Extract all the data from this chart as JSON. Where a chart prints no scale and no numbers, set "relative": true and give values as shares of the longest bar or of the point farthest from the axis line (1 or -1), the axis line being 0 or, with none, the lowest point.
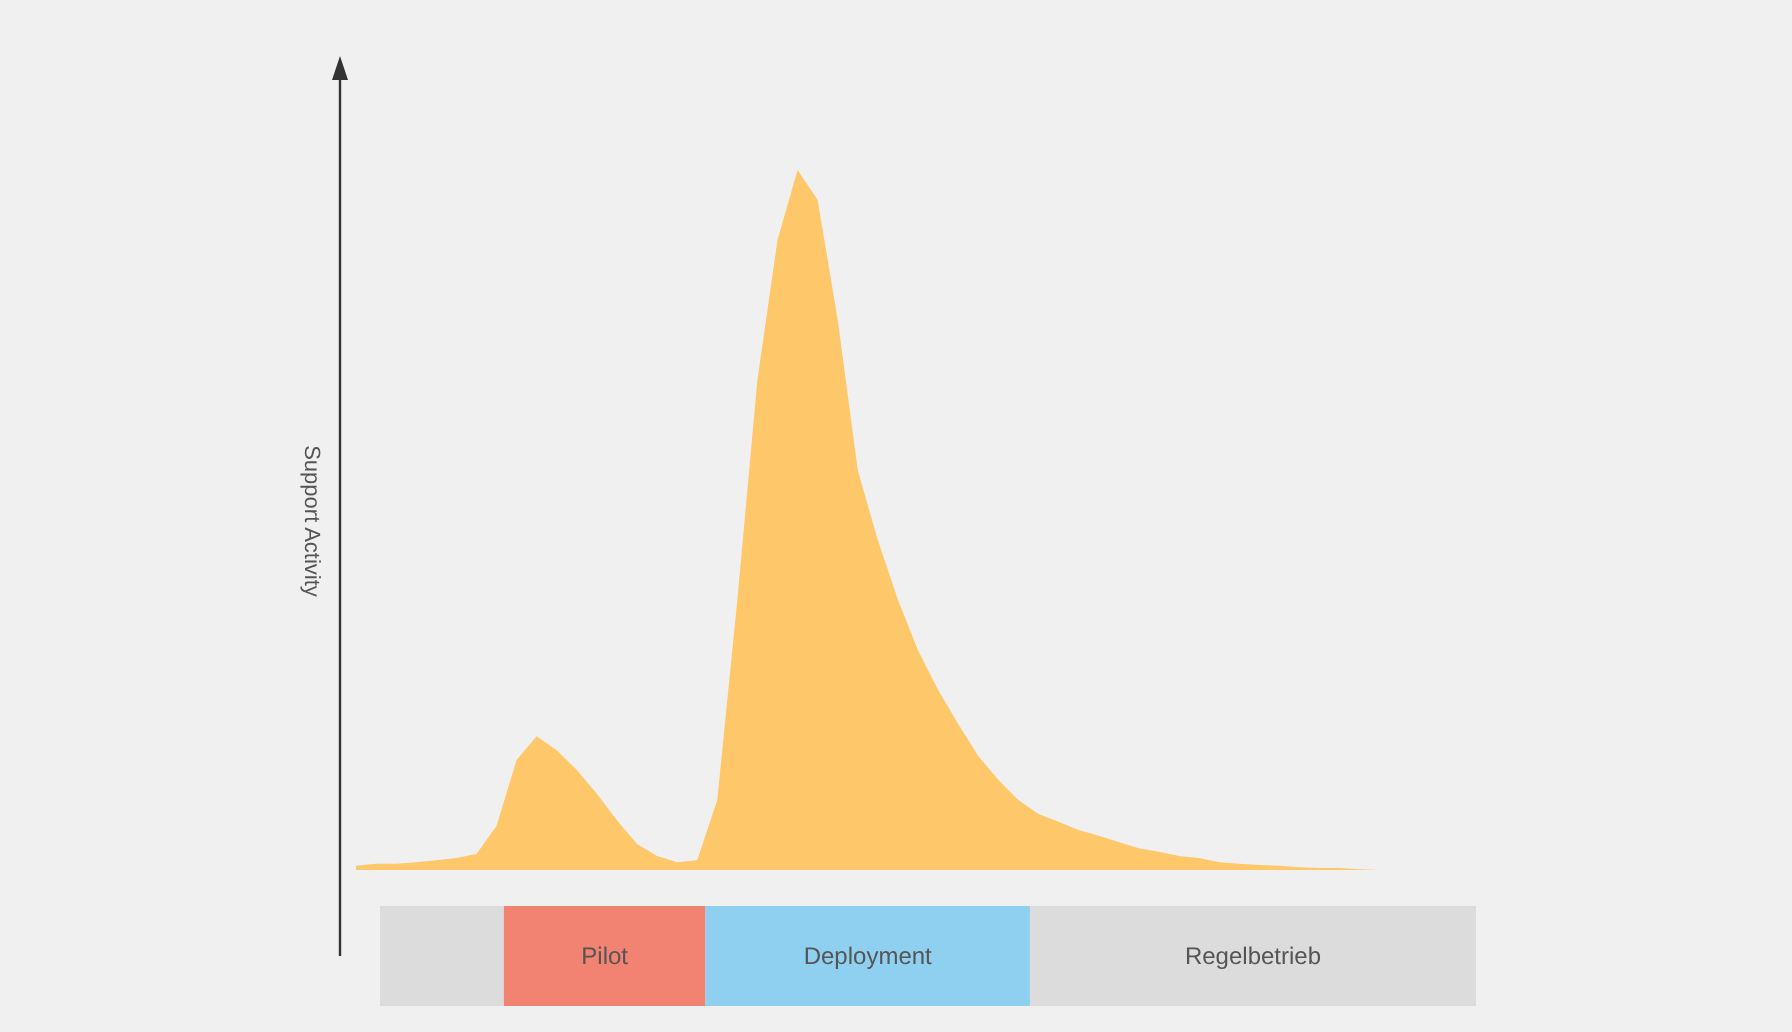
{
  "chart_data": [
    {
      "type": "area",
      "relative": true,
      "ylabel": "Support Activity",
      "color": "#fdc76a",
      "categories": [
        null,
        null,
        null,
        null,
        null,
        null,
        null,
        null,
        null,
        null,
        null,
        null,
        null,
        null,
        null,
        null,
        null,
        null,
        null,
        null,
        null,
        null,
        null,
        null,
        null,
        null,
        null,
        null,
        null,
        null,
        null,
        null,
        null,
        null,
        null,
        null,
        null,
        null,
        null,
        null,
        null,
        null,
        null,
        null,
        null,
        null,
        null,
        null,
        null,
        null,
        null,
        null,
        null,
        null,
        null,
        null,
        null
      ],
      "values": [
        0.006,
        0.009,
        0.009,
        0.011,
        0.014,
        0.017,
        0.023,
        0.063,
        0.157,
        0.191,
        0.171,
        0.143,
        0.109,
        0.071,
        0.037,
        0.02,
        0.011,
        0.014,
        0.1,
        0.386,
        0.7,
        0.9,
        1,
        0.957,
        0.786,
        0.571,
        0.471,
        0.386,
        0.314,
        0.257,
        0.209,
        0.163,
        0.129,
        0.1,
        0.08,
        0.069,
        0.057,
        0.049,
        0.04,
        0.031,
        0.026,
        0.02,
        0.017,
        0.011,
        0.009,
        0.007,
        0.006,
        0.004,
        0.003,
        0.003,
        0.001,
        0,
        0,
        0,
        0,
        0,
        0
      ]
    },
    {
      "type": "bar",
      "orientation": "horizontal",
      "stacked": true,
      "relative": true,
      "categories": [
        null
      ],
      "series": [
        {
          "color": "#dcdcdc",
          "values": [
            0.113
          ]
        },
        {
          "name": "Pilot",
          "color": "#f28272",
          "values": [
            0.184
          ]
        },
        {
          "name": "Deployment",
          "color": "#8fd0f0",
          "values": [
            0.296
          ]
        },
        {
          "name": "Regelbetrieb",
          "color": "#dcdcdc",
          "values": [
            0.407
          ]
        }
      ]
    }
  ]
}
